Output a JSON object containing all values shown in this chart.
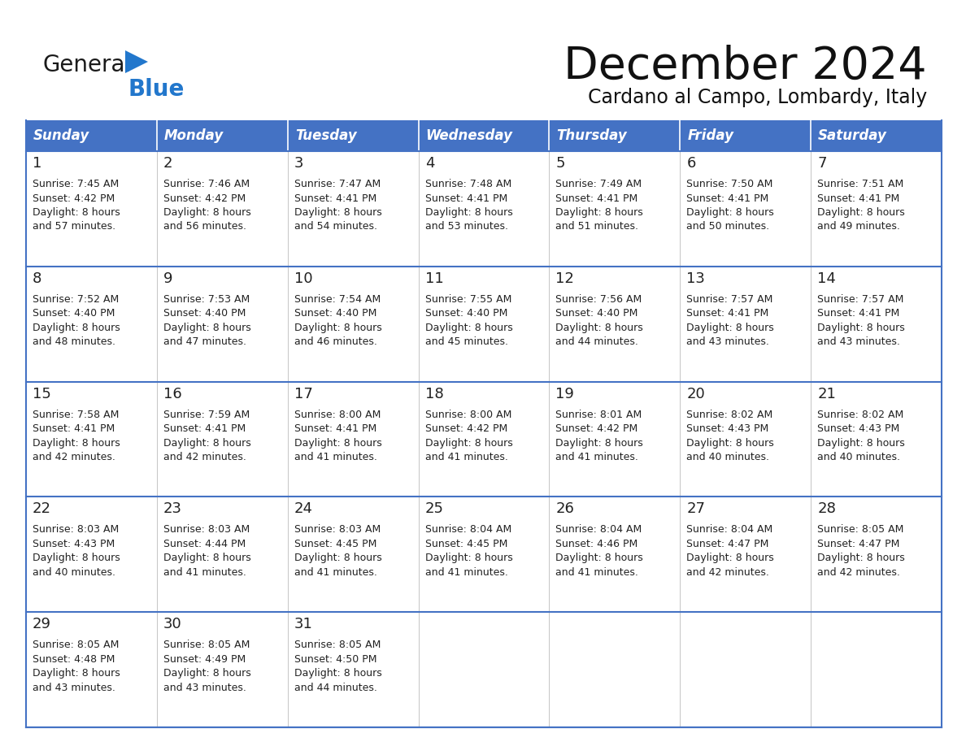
{
  "title": "December 2024",
  "subtitle": "Cardano al Campo, Lombardy, Italy",
  "header_bg": "#4472C4",
  "header_text_color": "#FFFFFF",
  "cell_bg": "#FFFFFF",
  "row_line_color": "#4472C4",
  "text_color": "#222222",
  "days_of_week": [
    "Sunday",
    "Monday",
    "Tuesday",
    "Wednesday",
    "Thursday",
    "Friday",
    "Saturday"
  ],
  "calendar_data": [
    [
      {
        "day": "1",
        "sunrise": "7:45 AM",
        "sunset": "4:42 PM",
        "daylight_h": "8 hours",
        "daylight_m": "and 57 minutes."
      },
      {
        "day": "2",
        "sunrise": "7:46 AM",
        "sunset": "4:42 PM",
        "daylight_h": "8 hours",
        "daylight_m": "and 56 minutes."
      },
      {
        "day": "3",
        "sunrise": "7:47 AM",
        "sunset": "4:41 PM",
        "daylight_h": "8 hours",
        "daylight_m": "and 54 minutes."
      },
      {
        "day": "4",
        "sunrise": "7:48 AM",
        "sunset": "4:41 PM",
        "daylight_h": "8 hours",
        "daylight_m": "and 53 minutes."
      },
      {
        "day": "5",
        "sunrise": "7:49 AM",
        "sunset": "4:41 PM",
        "daylight_h": "8 hours",
        "daylight_m": "and 51 minutes."
      },
      {
        "day": "6",
        "sunrise": "7:50 AM",
        "sunset": "4:41 PM",
        "daylight_h": "8 hours",
        "daylight_m": "and 50 minutes."
      },
      {
        "day": "7",
        "sunrise": "7:51 AM",
        "sunset": "4:41 PM",
        "daylight_h": "8 hours",
        "daylight_m": "and 49 minutes."
      }
    ],
    [
      {
        "day": "8",
        "sunrise": "7:52 AM",
        "sunset": "4:40 PM",
        "daylight_h": "8 hours",
        "daylight_m": "and 48 minutes."
      },
      {
        "day": "9",
        "sunrise": "7:53 AM",
        "sunset": "4:40 PM",
        "daylight_h": "8 hours",
        "daylight_m": "and 47 minutes."
      },
      {
        "day": "10",
        "sunrise": "7:54 AM",
        "sunset": "4:40 PM",
        "daylight_h": "8 hours",
        "daylight_m": "and 46 minutes."
      },
      {
        "day": "11",
        "sunrise": "7:55 AM",
        "sunset": "4:40 PM",
        "daylight_h": "8 hours",
        "daylight_m": "and 45 minutes."
      },
      {
        "day": "12",
        "sunrise": "7:56 AM",
        "sunset": "4:40 PM",
        "daylight_h": "8 hours",
        "daylight_m": "and 44 minutes."
      },
      {
        "day": "13",
        "sunrise": "7:57 AM",
        "sunset": "4:41 PM",
        "daylight_h": "8 hours",
        "daylight_m": "and 43 minutes."
      },
      {
        "day": "14",
        "sunrise": "7:57 AM",
        "sunset": "4:41 PM",
        "daylight_h": "8 hours",
        "daylight_m": "and 43 minutes."
      }
    ],
    [
      {
        "day": "15",
        "sunrise": "7:58 AM",
        "sunset": "4:41 PM",
        "daylight_h": "8 hours",
        "daylight_m": "and 42 minutes."
      },
      {
        "day": "16",
        "sunrise": "7:59 AM",
        "sunset": "4:41 PM",
        "daylight_h": "8 hours",
        "daylight_m": "and 42 minutes."
      },
      {
        "day": "17",
        "sunrise": "8:00 AM",
        "sunset": "4:41 PM",
        "daylight_h": "8 hours",
        "daylight_m": "and 41 minutes."
      },
      {
        "day": "18",
        "sunrise": "8:00 AM",
        "sunset": "4:42 PM",
        "daylight_h": "8 hours",
        "daylight_m": "and 41 minutes."
      },
      {
        "day": "19",
        "sunrise": "8:01 AM",
        "sunset": "4:42 PM",
        "daylight_h": "8 hours",
        "daylight_m": "and 41 minutes."
      },
      {
        "day": "20",
        "sunrise": "8:02 AM",
        "sunset": "4:43 PM",
        "daylight_h": "8 hours",
        "daylight_m": "and 40 minutes."
      },
      {
        "day": "21",
        "sunrise": "8:02 AM",
        "sunset": "4:43 PM",
        "daylight_h": "8 hours",
        "daylight_m": "and 40 minutes."
      }
    ],
    [
      {
        "day": "22",
        "sunrise": "8:03 AM",
        "sunset": "4:43 PM",
        "daylight_h": "8 hours",
        "daylight_m": "and 40 minutes."
      },
      {
        "day": "23",
        "sunrise": "8:03 AM",
        "sunset": "4:44 PM",
        "daylight_h": "8 hours",
        "daylight_m": "and 41 minutes."
      },
      {
        "day": "24",
        "sunrise": "8:03 AM",
        "sunset": "4:45 PM",
        "daylight_h": "8 hours",
        "daylight_m": "and 41 minutes."
      },
      {
        "day": "25",
        "sunrise": "8:04 AM",
        "sunset": "4:45 PM",
        "daylight_h": "8 hours",
        "daylight_m": "and 41 minutes."
      },
      {
        "day": "26",
        "sunrise": "8:04 AM",
        "sunset": "4:46 PM",
        "daylight_h": "8 hours",
        "daylight_m": "and 41 minutes."
      },
      {
        "day": "27",
        "sunrise": "8:04 AM",
        "sunset": "4:47 PM",
        "daylight_h": "8 hours",
        "daylight_m": "and 42 minutes."
      },
      {
        "day": "28",
        "sunrise": "8:05 AM",
        "sunset": "4:47 PM",
        "daylight_h": "8 hours",
        "daylight_m": "and 42 minutes."
      }
    ],
    [
      {
        "day": "29",
        "sunrise": "8:05 AM",
        "sunset": "4:48 PM",
        "daylight_h": "8 hours",
        "daylight_m": "and 43 minutes."
      },
      {
        "day": "30",
        "sunrise": "8:05 AM",
        "sunset": "4:49 PM",
        "daylight_h": "8 hours",
        "daylight_m": "and 43 minutes."
      },
      {
        "day": "31",
        "sunrise": "8:05 AM",
        "sunset": "4:50 PM",
        "daylight_h": "8 hours",
        "daylight_m": "and 44 minutes."
      },
      null,
      null,
      null,
      null
    ]
  ],
  "logo_color_general": "#1a1a1a",
  "logo_color_blue": "#2277CC",
  "logo_triangle_color": "#2277CC"
}
